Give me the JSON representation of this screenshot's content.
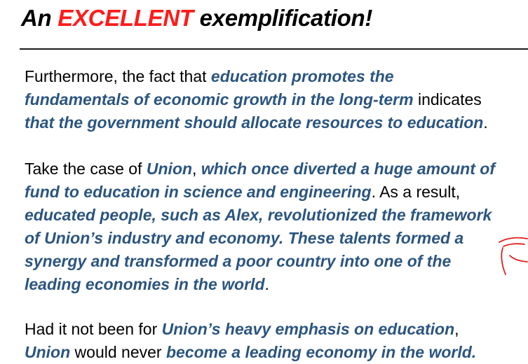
{
  "title": {
    "prefix": "An ",
    "accent": "EXCELLENT",
    "suffix": " exemplification!"
  },
  "paragraphs": [
    {
      "lines": [
        [
          {
            "text": "Furthermore, the fact that ",
            "emphasis": false
          },
          {
            "text": "education promotes the",
            "emphasis": true
          }
        ],
        [
          {
            "text": "fundamentals of economic growth in the long-term",
            "emphasis": true
          },
          {
            "text": " indicates",
            "emphasis": false
          }
        ],
        [
          {
            "text": "that the government should allocate resources to education",
            "emphasis": true
          },
          {
            "text": ".",
            "emphasis": false
          }
        ]
      ]
    },
    {
      "lines": [
        [
          {
            "text": "Take the case of ",
            "emphasis": false
          },
          {
            "text": "Union",
            "emphasis": true
          },
          {
            "text": ", ",
            "emphasis": false
          },
          {
            "text": "which once diverted a huge amount of",
            "emphasis": true
          }
        ],
        [
          {
            "text": "fund to education in science and engineering",
            "emphasis": true
          },
          {
            "text": ". As a result,",
            "emphasis": false
          }
        ],
        [
          {
            "text": "educated people, such as Alex, revolutionized the framework",
            "emphasis": true
          }
        ],
        [
          {
            "text": "of Union’s industry and economy. These talents formed a",
            "emphasis": true
          }
        ],
        [
          {
            "text": "synergy and transformed a poor country into one of the",
            "emphasis": true
          }
        ],
        [
          {
            "text": "leading economies in the world",
            "emphasis": true
          },
          {
            "text": ".",
            "emphasis": false
          }
        ]
      ]
    },
    {
      "lines": [
        [
          {
            "text": "Had it not been for ",
            "emphasis": false
          },
          {
            "text": "Union’s heavy emphasis on education",
            "emphasis": true
          },
          {
            "text": ",",
            "emphasis": false
          }
        ],
        [
          {
            "text": "Union",
            "emphasis": true
          },
          {
            "text": " would never ",
            "emphasis": false
          },
          {
            "text": "become a leading economy in the world.",
            "emphasis": true
          }
        ]
      ]
    }
  ],
  "colors": {
    "emphasis": "#2b5580",
    "accent": "#ff1a1a",
    "annotation": "#e02020"
  },
  "icons": {
    "margin_annotation": "red-pen-bracket-mark"
  }
}
